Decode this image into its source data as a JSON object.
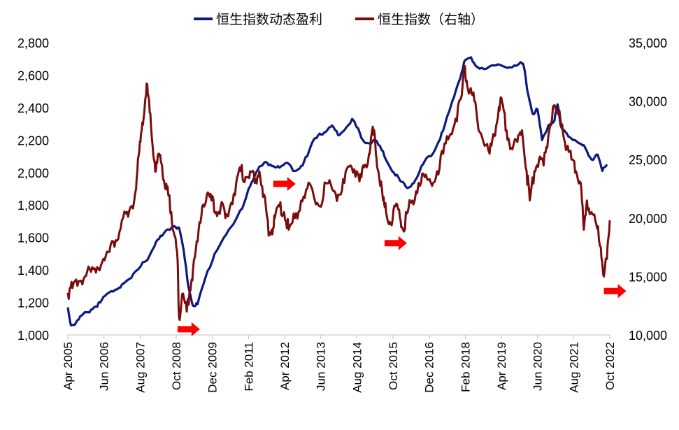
{
  "chart_data": {
    "type": "line",
    "title": "",
    "legend": {
      "placement": "top-center",
      "entries": [
        "恒生指数动态盈利",
        "恒生指数（右轴）"
      ]
    },
    "colors": {
      "earnings": "#0d1a7e",
      "index": "#7a0c0c",
      "arrow": "#ff0000"
    },
    "x_tick_labels": [
      "Apr 2005",
      "Jun 2006",
      "Aug 2007",
      "Oct 2008",
      "Dec 2009",
      "Feb 2011",
      "Apr 2012",
      "Jun 2013",
      "Aug 2014",
      "Oct 2015",
      "Dec 2016",
      "Feb 2018",
      "Apr 2019",
      "Jun 2020",
      "Aug 2021",
      "Oct 2022"
    ],
    "x_range": [
      2005.25,
      2022.79
    ],
    "y_left": {
      "min": 1000,
      "max": 2800,
      "step": 200,
      "tick_labels": [
        "1,000",
        "1,200",
        "1,400",
        "1,600",
        "1,800",
        "2,000",
        "2,200",
        "2,400",
        "2,600",
        "2,800"
      ]
    },
    "y_right": {
      "min": 10000,
      "max": 35000,
      "step": 5000,
      "tick_labels": [
        "10,000",
        "15,000",
        "20,000",
        "25,000",
        "30,000",
        "35,000"
      ]
    },
    "series": [
      {
        "name": "恒生指数动态盈利",
        "axis": "left",
        "color": "#0d1a7e",
        "points": [
          [
            2005.25,
            1170
          ],
          [
            2005.35,
            1060
          ],
          [
            2005.5,
            1070
          ],
          [
            2005.7,
            1120
          ],
          [
            2005.9,
            1140
          ],
          [
            2006.1,
            1170
          ],
          [
            2006.3,
            1200
          ],
          [
            2006.5,
            1250
          ],
          [
            2006.8,
            1280
          ],
          [
            2007.0,
            1310
          ],
          [
            2007.3,
            1350
          ],
          [
            2007.6,
            1420
          ],
          [
            2007.9,
            1490
          ],
          [
            2008.1,
            1570
          ],
          [
            2008.3,
            1610
          ],
          [
            2008.5,
            1650
          ],
          [
            2008.7,
            1670
          ],
          [
            2008.85,
            1660
          ],
          [
            2009.0,
            1520
          ],
          [
            2009.15,
            1300
          ],
          [
            2009.3,
            1180
          ],
          [
            2009.45,
            1190
          ],
          [
            2009.7,
            1350
          ],
          [
            2010.0,
            1500
          ],
          [
            2010.3,
            1600
          ],
          [
            2010.6,
            1680
          ],
          [
            2010.9,
            1780
          ],
          [
            2011.1,
            1900
          ],
          [
            2011.3,
            1980
          ],
          [
            2011.5,
            2040
          ],
          [
            2011.7,
            2060
          ],
          [
            2011.9,
            2040
          ],
          [
            2012.1,
            2030
          ],
          [
            2012.35,
            2060
          ],
          [
            2012.6,
            2010
          ],
          [
            2012.8,
            2040
          ],
          [
            2013.0,
            2100
          ],
          [
            2013.2,
            2200
          ],
          [
            2013.4,
            2240
          ],
          [
            2013.6,
            2250
          ],
          [
            2013.8,
            2290
          ],
          [
            2014.0,
            2230
          ],
          [
            2014.2,
            2260
          ],
          [
            2014.45,
            2330
          ],
          [
            2014.6,
            2280
          ],
          [
            2014.8,
            2200
          ],
          [
            2015.0,
            2180
          ],
          [
            2015.2,
            2200
          ],
          [
            2015.4,
            2140
          ],
          [
            2015.6,
            2060
          ],
          [
            2015.8,
            2000
          ],
          [
            2016.0,
            1950
          ],
          [
            2016.2,
            1910
          ],
          [
            2016.4,
            1930
          ],
          [
            2016.6,
            1990
          ],
          [
            2016.8,
            2070
          ],
          [
            2017.0,
            2100
          ],
          [
            2017.2,
            2170
          ],
          [
            2017.4,
            2260
          ],
          [
            2017.6,
            2380
          ],
          [
            2017.8,
            2500
          ],
          [
            2018.0,
            2620
          ],
          [
            2018.1,
            2690
          ],
          [
            2018.3,
            2710
          ],
          [
            2018.5,
            2650
          ],
          [
            2018.8,
            2640
          ],
          [
            2019.1,
            2660
          ],
          [
            2019.4,
            2650
          ],
          [
            2019.7,
            2660
          ],
          [
            2019.9,
            2680
          ],
          [
            2020.0,
            2660
          ],
          [
            2020.15,
            2480
          ],
          [
            2020.3,
            2360
          ],
          [
            2020.45,
            2390
          ],
          [
            2020.6,
            2200
          ],
          [
            2020.8,
            2290
          ],
          [
            2021.0,
            2320
          ],
          [
            2021.1,
            2420
          ],
          [
            2021.2,
            2290
          ],
          [
            2021.4,
            2240
          ],
          [
            2021.6,
            2200
          ],
          [
            2021.8,
            2180
          ],
          [
            2022.0,
            2150
          ],
          [
            2022.2,
            2080
          ],
          [
            2022.4,
            2110
          ],
          [
            2022.55,
            2010
          ],
          [
            2022.7,
            2050
          ]
        ]
      },
      {
        "name": "恒生指数（右轴）",
        "axis": "right",
        "color": "#7a0c0c",
        "points": [
          [
            2005.25,
            13600
          ],
          [
            2005.4,
            14000
          ],
          [
            2005.6,
            14600
          ],
          [
            2005.8,
            15000
          ],
          [
            2006.0,
            15400
          ],
          [
            2006.2,
            15800
          ],
          [
            2006.4,
            16500
          ],
          [
            2006.6,
            17100
          ],
          [
            2006.8,
            18100
          ],
          [
            2007.0,
            19800
          ],
          [
            2007.2,
            20100
          ],
          [
            2007.4,
            21500
          ],
          [
            2007.5,
            24000
          ],
          [
            2007.6,
            26500
          ],
          [
            2007.7,
            28500
          ],
          [
            2007.8,
            31500
          ],
          [
            2007.9,
            29000
          ],
          [
            2008.0,
            26000
          ],
          [
            2008.1,
            24000
          ],
          [
            2008.2,
            25500
          ],
          [
            2008.3,
            24500
          ],
          [
            2008.4,
            22500
          ],
          [
            2008.5,
            22000
          ],
          [
            2008.6,
            20500
          ],
          [
            2008.7,
            18500
          ],
          [
            2008.8,
            16500
          ],
          [
            2008.85,
            11500
          ],
          [
            2008.95,
            13500
          ],
          [
            2009.1,
            12000
          ],
          [
            2009.2,
            14000
          ],
          [
            2009.3,
            15500
          ],
          [
            2009.45,
            18000
          ],
          [
            2009.6,
            21000
          ],
          [
            2009.75,
            22000
          ],
          [
            2009.9,
            21500
          ],
          [
            2010.05,
            20500
          ],
          [
            2010.2,
            21000
          ],
          [
            2010.35,
            20000
          ],
          [
            2010.5,
            21000
          ],
          [
            2010.7,
            23000
          ],
          [
            2010.85,
            24000
          ],
          [
            2011.0,
            23500
          ],
          [
            2011.15,
            24000
          ],
          [
            2011.3,
            23000
          ],
          [
            2011.45,
            24000
          ],
          [
            2011.6,
            22000
          ],
          [
            2011.75,
            18500
          ],
          [
            2011.85,
            19000
          ],
          [
            2011.95,
            20000
          ],
          [
            2012.1,
            21000
          ],
          [
            2012.25,
            20500
          ],
          [
            2012.4,
            19000
          ],
          [
            2012.6,
            20000
          ],
          [
            2012.8,
            21500
          ],
          [
            2013.0,
            22500
          ],
          [
            2013.2,
            22000
          ],
          [
            2013.4,
            21000
          ],
          [
            2013.6,
            23000
          ],
          [
            2013.8,
            22500
          ],
          [
            2014.0,
            22000
          ],
          [
            2014.2,
            23000
          ],
          [
            2014.4,
            24500
          ],
          [
            2014.6,
            24000
          ],
          [
            2014.75,
            23500
          ],
          [
            2014.9,
            24500
          ],
          [
            2015.0,
            25500
          ],
          [
            2015.1,
            27500
          ],
          [
            2015.2,
            26500
          ],
          [
            2015.3,
            24000
          ],
          [
            2015.45,
            21500
          ],
          [
            2015.55,
            20500
          ],
          [
            2015.7,
            19500
          ],
          [
            2015.85,
            21000
          ],
          [
            2016.0,
            20000
          ],
          [
            2016.1,
            19000
          ],
          [
            2016.25,
            20500
          ],
          [
            2016.4,
            21500
          ],
          [
            2016.6,
            23000
          ],
          [
            2016.8,
            23500
          ],
          [
            2017.0,
            23000
          ],
          [
            2017.2,
            24000
          ],
          [
            2017.4,
            25500
          ],
          [
            2017.6,
            27000
          ],
          [
            2017.8,
            28500
          ],
          [
            2018.0,
            30500
          ],
          [
            2018.1,
            33000
          ],
          [
            2018.2,
            31000
          ],
          [
            2018.35,
            30500
          ],
          [
            2018.5,
            28500
          ],
          [
            2018.7,
            26500
          ],
          [
            2018.9,
            25500
          ],
          [
            2019.05,
            27000
          ],
          [
            2019.2,
            29500
          ],
          [
            2019.3,
            30000
          ],
          [
            2019.45,
            27500
          ],
          [
            2019.6,
            26000
          ],
          [
            2019.8,
            26500
          ],
          [
            2019.95,
            27500
          ],
          [
            2020.1,
            24000
          ],
          [
            2020.2,
            21500
          ],
          [
            2020.35,
            24000
          ],
          [
            2020.5,
            25000
          ],
          [
            2020.65,
            24500
          ],
          [
            2020.8,
            27000
          ],
          [
            2020.95,
            29500
          ],
          [
            2021.1,
            29000
          ],
          [
            2021.25,
            28000
          ],
          [
            2021.4,
            26000
          ],
          [
            2021.55,
            25000
          ],
          [
            2021.7,
            24000
          ],
          [
            2021.85,
            23000
          ],
          [
            2021.95,
            19000
          ],
          [
            2022.05,
            21500
          ],
          [
            2022.2,
            20500
          ],
          [
            2022.35,
            19500
          ],
          [
            2022.5,
            17500
          ],
          [
            2022.6,
            15000
          ],
          [
            2022.7,
            16500
          ],
          [
            2022.79,
            19800
          ]
        ]
      }
    ],
    "annotations": [
      {
        "type": "arrow",
        "x": 2008.8,
        "y_left": 1035
      },
      {
        "type": "arrow",
        "x": 2011.9,
        "y_left": 1930
      },
      {
        "type": "arrow",
        "x": 2015.5,
        "y_left": 1565
      },
      {
        "type": "arrow",
        "x": 2022.6,
        "y_left": 1270
      }
    ]
  }
}
